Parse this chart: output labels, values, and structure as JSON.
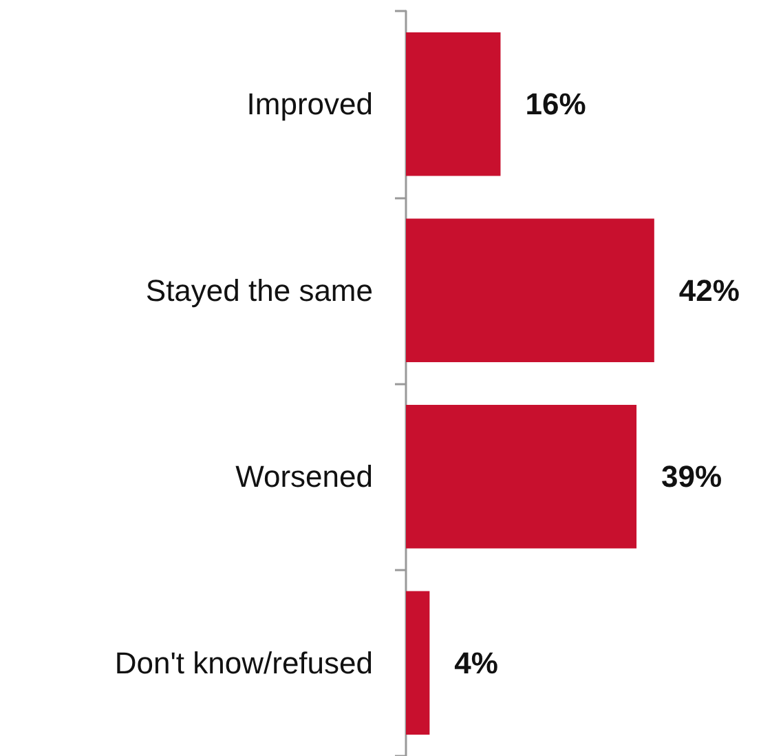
{
  "chart_data": {
    "type": "bar",
    "orientation": "horizontal",
    "categories": [
      "Improved",
      "Stayed the same",
      "Worsened",
      "Don't know/refused"
    ],
    "values": [
      16,
      42,
      39,
      4
    ],
    "value_labels": [
      "16%",
      "42%",
      "39%",
      "4%"
    ],
    "color": "#c8102e"
  }
}
